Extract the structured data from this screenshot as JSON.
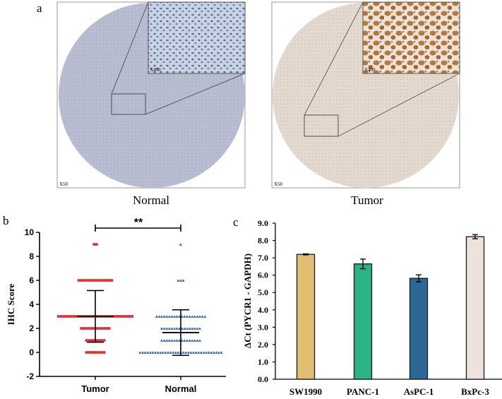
{
  "panel_labels": {
    "a": "a",
    "b": "b",
    "c": "c"
  },
  "panel_a": {
    "images": [
      {
        "label": "Normal",
        "inset_mag": "X400",
        "overview_mag": "X50",
        "tissue_color": "#b9bdd1",
        "inset_color": "#c9d3e3",
        "nuclei_color": "#5d6f9c"
      },
      {
        "label": "Tumor",
        "inset_mag": "X400",
        "overview_mag": "X50",
        "tissue_color": "#e3d9cf",
        "inset_color": "#ece3d8",
        "nuclei_color": "#a8672a"
      }
    ]
  },
  "chart_data": [
    {
      "type": "scatter",
      "ylabel": "IHC Score",
      "xlabel": "",
      "categories": [
        "Tumor",
        "Normal"
      ],
      "ylim": [
        -2,
        10
      ],
      "yticks": [
        "10",
        "8",
        "6",
        "4",
        "2",
        "0",
        "-2"
      ],
      "significance": "**",
      "series": [
        {
          "category": "Tumor",
          "color": "#e8262b",
          "marker": "square",
          "points": [
            {
              "y": 9,
              "n": 2
            },
            {
              "y": 6,
              "n": 14
            },
            {
              "y": 3,
              "n": 30
            },
            {
              "y": 2,
              "n": 12
            },
            {
              "y": 1,
              "n": 8
            },
            {
              "y": 0,
              "n": 8
            }
          ],
          "mean": 3.0,
          "sd_upper": 5.15,
          "sd_lower": 0.85
        },
        {
          "category": "Normal",
          "color": "#2f5fa8",
          "marker": "triangle",
          "points": [
            {
              "y": 9,
              "n": 1
            },
            {
              "y": 6,
              "n": 3
            },
            {
              "y": 3,
              "n": 20
            },
            {
              "y": 2,
              "n": 16
            },
            {
              "y": 1,
              "n": 16
            },
            {
              "y": 0,
              "n": 33
            }
          ],
          "mean": 1.65,
          "sd_upper": 3.55,
          "sd_lower": -0.25
        }
      ],
      "grid": false
    },
    {
      "type": "bar",
      "ylabel": "ΔCt (PYCR1 - GAPDH)",
      "xlabel": "",
      "categories": [
        "SW1990",
        "PANC-1",
        "AsPC-1",
        "BxPc-3"
      ],
      "values": [
        7.2,
        6.65,
        5.82,
        8.22
      ],
      "errors": [
        0.03,
        0.28,
        0.2,
        0.12
      ],
      "colors": [
        "#e2bd72",
        "#2bb384",
        "#2c6896",
        "#ede3dc"
      ],
      "ylim": [
        0,
        9
      ],
      "yticks": [
        "0.0",
        "1.0",
        "2.0",
        "3.0",
        "4.0",
        "5.0",
        "6.0",
        "7.0",
        "8.0",
        "9.0"
      ],
      "grid": false
    }
  ]
}
